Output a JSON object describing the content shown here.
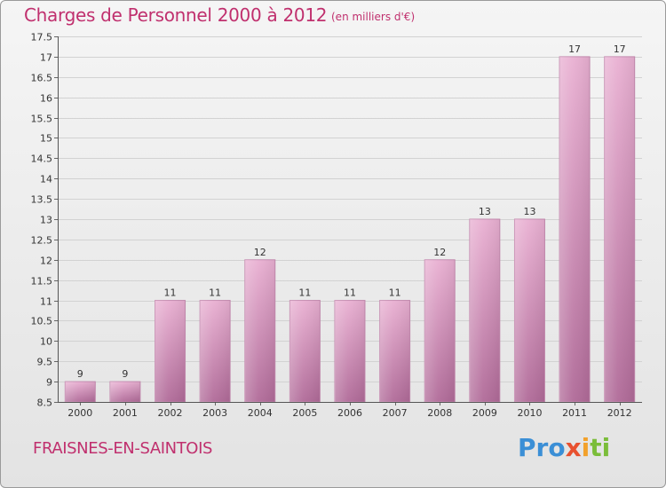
{
  "header": {
    "title": "Charges de Personnel 2000 à 2012",
    "subtitle": "(en milliers d'€)"
  },
  "footer": {
    "commune": "FRAISNES-EN-SAINTOIS",
    "logo": {
      "p1": "Pro",
      "p2": "x",
      "p3": "i",
      "p4": "ti"
    }
  },
  "colors": {
    "bar": "#d07fb0",
    "bar_light": "#e8b3d3",
    "title": "#c0306e",
    "grid": "#cfcfcf"
  },
  "chart_data": {
    "type": "bar",
    "title": "Charges de Personnel 2000 à 2012",
    "subtitle": "(en milliers d'€)",
    "categories": [
      "2000",
      "2001",
      "2002",
      "2003",
      "2004",
      "2005",
      "2006",
      "2007",
      "2008",
      "2009",
      "2010",
      "2011",
      "2012"
    ],
    "values": [
      9,
      9,
      11,
      11,
      12,
      11,
      11,
      11,
      12,
      13,
      13,
      17,
      17
    ],
    "ylim": [
      8.5,
      17.5
    ],
    "yticks": [
      "8.5",
      "9",
      "9.5",
      "10",
      "10.5",
      "11",
      "11.5",
      "12",
      "12.5",
      "13",
      "13.5",
      "14",
      "14.5",
      "15",
      "15.5",
      "16",
      "16.5",
      "17",
      "17.5"
    ],
    "grid": true,
    "xlabel": "",
    "ylabel": ""
  }
}
